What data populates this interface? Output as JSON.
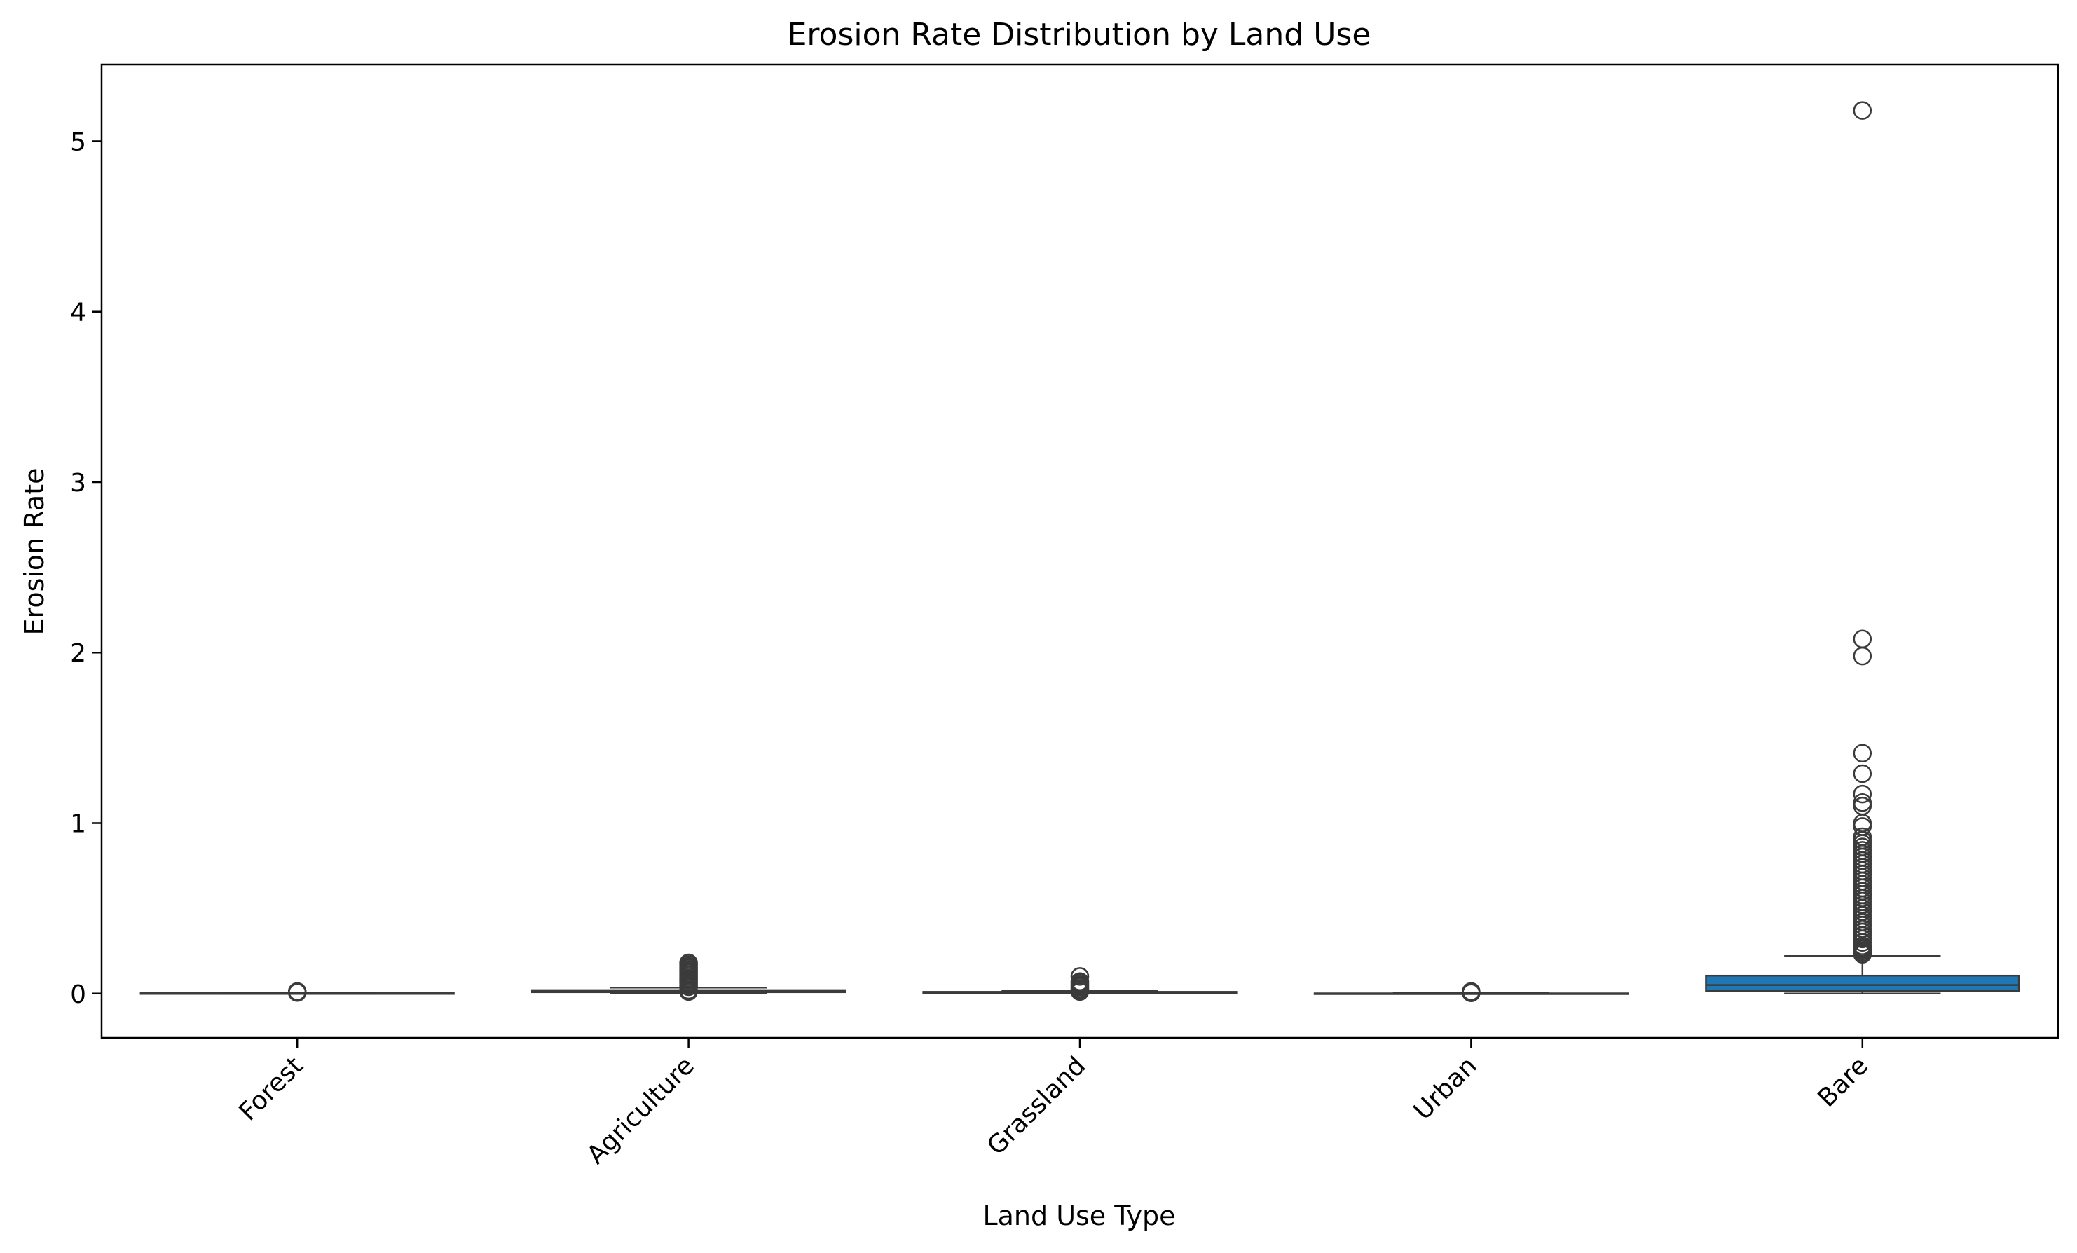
{
  "chart_data": {
    "type": "box",
    "title": "Erosion Rate Distribution by Land Use",
    "xlabel": "Land Use Type",
    "ylabel": "Erosion Rate",
    "ylim": [
      -0.26,
      5.45
    ],
    "yticks": [
      0,
      1,
      2,
      3,
      4,
      5
    ],
    "grid": false,
    "box_color": "#1f77b4",
    "line_color": "#3b3b3b",
    "categories": [
      "Forest",
      "Agriculture",
      "Grassland",
      "Urban",
      "Bare"
    ],
    "boxes": [
      {
        "category": "Forest",
        "q1": 0.0,
        "median": 0.0,
        "q3": 0.002,
        "whisker_low": 0.0,
        "whisker_high": 0.004,
        "outliers": [
          0.006,
          0.008,
          0.01,
          0.012
        ]
      },
      {
        "category": "Agriculture",
        "q1": 0.008,
        "median": 0.013,
        "q3": 0.02,
        "whisker_low": 0.0,
        "whisker_high": 0.035,
        "outliers": [
          0.04,
          0.05,
          0.06,
          0.07,
          0.08,
          0.09,
          0.1,
          0.11,
          0.12,
          0.13,
          0.14,
          0.15,
          0.16,
          0.17,
          0.18,
          0.012,
          0.02
        ]
      },
      {
        "category": "Grassland",
        "q1": 0.002,
        "median": 0.005,
        "q3": 0.01,
        "whisker_low": 0.0,
        "whisker_high": 0.018,
        "outliers": [
          0.022,
          0.03,
          0.04,
          0.05,
          0.06,
          0.07,
          0.1,
          0.012
        ]
      },
      {
        "category": "Urban",
        "q1": 0.0,
        "median": 0.0,
        "q3": 0.001,
        "whisker_low": 0.0,
        "whisker_high": 0.002,
        "outliers": [
          0.004,
          0.006,
          0.008,
          0.01,
          0.012
        ]
      },
      {
        "category": "Bare",
        "q1": 0.015,
        "median": 0.05,
        "q3": 0.105,
        "whisker_low": 0.0,
        "whisker_high": 0.22,
        "outliers": [
          0.23,
          0.24,
          0.25,
          0.26,
          0.27,
          0.28,
          0.3,
          0.32,
          0.34,
          0.36,
          0.38,
          0.4,
          0.42,
          0.44,
          0.46,
          0.48,
          0.5,
          0.52,
          0.54,
          0.56,
          0.58,
          0.6,
          0.62,
          0.64,
          0.66,
          0.68,
          0.7,
          0.72,
          0.74,
          0.76,
          0.78,
          0.8,
          0.82,
          0.84,
          0.86,
          0.88,
          0.9,
          0.92,
          0.98,
          1.0,
          1.1,
          1.12,
          1.17,
          1.29,
          1.41,
          1.98,
          2.08,
          5.18
        ]
      }
    ]
  }
}
